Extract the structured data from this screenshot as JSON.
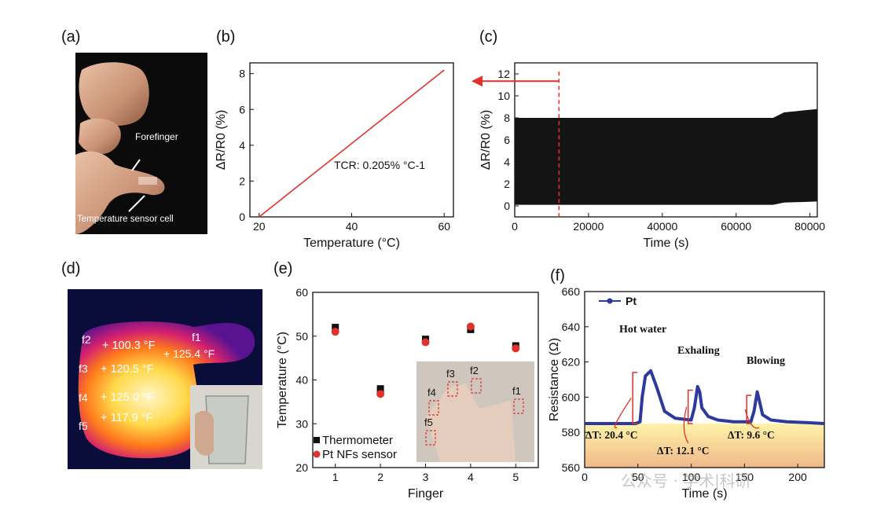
{
  "panels": {
    "a": {
      "label": "(a)",
      "annotations": [
        "Forefinger",
        "Temperature sensor cell"
      ]
    },
    "b": {
      "label": "(b)"
    },
    "c": {
      "label": "(c)"
    },
    "d": {
      "label": "(d)",
      "readings": [
        {
          "finger": "f2",
          "value": "+ 100.3 °F"
        },
        {
          "finger": "f1",
          "value": "+ 125.4 °F"
        },
        {
          "finger": "f3",
          "value": "+ 120.5 °F"
        },
        {
          "finger": "f4",
          "value": "+ 125.0 °F"
        },
        {
          "finger": "f5",
          "value": "+ 117.9 °F"
        }
      ]
    },
    "e": {
      "label": "(e)",
      "inset_labels": [
        "f3",
        "f2",
        "f4",
        "f1",
        "f5"
      ]
    },
    "f": {
      "label": "(f)"
    }
  },
  "watermark": "公众号 · 学术|科研",
  "chart_data": [
    {
      "id": "b",
      "type": "line",
      "xlabel": "Temperature (°C)",
      "ylabel": "ΔR/R0 (%)",
      "xlim": [
        18,
        62
      ],
      "ylim": [
        0,
        8.6
      ],
      "xticks": [
        20,
        40,
        60
      ],
      "yticks": [
        0,
        2,
        4,
        6,
        8
      ],
      "annotation": "TCR: 0.205% °C-1",
      "colors": {
        "line": "#e0312b"
      },
      "series": [
        {
          "x": [
            20,
            60
          ],
          "y": [
            0,
            8.2
          ]
        }
      ]
    },
    {
      "id": "c",
      "type": "line",
      "xlabel": "Time (s)",
      "ylabel": "ΔR/R0 (%)",
      "xlim": [
        0,
        82000
      ],
      "ylim": [
        -1,
        13
      ],
      "xticks": [
        0,
        20000,
        40000,
        60000,
        80000
      ],
      "yticks": [
        0,
        2,
        4,
        6,
        8,
        10,
        12
      ],
      "marker_x": 12000,
      "colors": {
        "fill": "#141414",
        "marker": "#e0312b"
      },
      "series": [
        {
          "x": [
            0,
            12000,
            70000,
            73000,
            82000
          ],
          "y_max": [
            8.0,
            8.0,
            8.0,
            8.5,
            8.8
          ],
          "y_min": [
            0.1,
            0.1,
            0.1,
            0.3,
            0.4
          ]
        }
      ]
    },
    {
      "id": "e",
      "type": "scatter",
      "xlabel": "Finger",
      "ylabel": "Temperature (°C)",
      "xlim": [
        0.5,
        5.5
      ],
      "ylim": [
        20,
        60
      ],
      "xticks": [
        1,
        2,
        3,
        4,
        5
      ],
      "yticks": [
        20,
        30,
        40,
        50,
        60
      ],
      "categories": [
        1,
        2,
        3,
        4,
        5
      ],
      "series": [
        {
          "name": "Thermometer",
          "values": [
            52.0,
            38.0,
            49.3,
            51.5,
            47.8
          ],
          "color": "#111111",
          "marker": "square"
        },
        {
          "name": "Pt NFs sensor",
          "values": [
            51.0,
            36.8,
            48.6,
            52.2,
            47.2
          ],
          "color": "#e0312b",
          "marker": "circle"
        }
      ]
    },
    {
      "id": "f",
      "type": "line",
      "xlabel": "Time (s)",
      "ylabel": "Resistance (Ω)",
      "xlim": [
        0,
        225
      ],
      "ylim": [
        560,
        660
      ],
      "xticks": [
        0,
        50,
        100,
        150,
        200
      ],
      "yticks": [
        560,
        580,
        600,
        620,
        640,
        660
      ],
      "colors": {
        "line": "#2b3a9c",
        "annotation": "#e0312b"
      },
      "series": [
        {
          "name": "Pt",
          "x": [
            0,
            48,
            52,
            54,
            57,
            62,
            68,
            75,
            85,
            100,
            103,
            106,
            108,
            110,
            116,
            125,
            140,
            156,
            159,
            162,
            164,
            167,
            175,
            190,
            210,
            225
          ],
          "y": [
            585,
            585,
            586,
            600,
            612,
            615,
            605,
            592,
            588,
            587,
            594,
            606,
            603,
            594,
            589,
            587,
            586,
            586,
            592,
            603,
            598,
            590,
            587,
            586,
            585.5,
            585
          ]
        }
      ],
      "events": [
        {
          "label": "Hot water",
          "delta": "ΔT: 20.4 °C"
        },
        {
          "label": "Exhaling",
          "delta": "ΔT: 12.1 °C"
        },
        {
          "label": "Blowing",
          "delta": "ΔT: 9.6 °C"
        }
      ]
    }
  ]
}
